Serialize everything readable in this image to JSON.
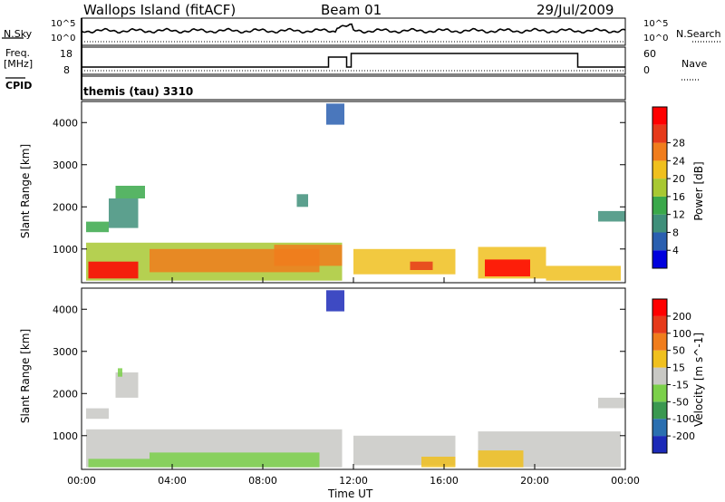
{
  "header": {
    "station": "Wallops Island (fitACF)",
    "beam": "Beam 01",
    "date": "29/Jul/2009"
  },
  "strip": {
    "nsky_label": "N.Sky",
    "nsearch_label": "N.Search",
    "freq_label": "Freq.",
    "freq_unit": "[MHz]",
    "cpid_label": "CPID",
    "nave_label": "Nave",
    "mode_text": "themis (tau) 3310",
    "noise_ticks": [
      "10^5",
      "10^0"
    ],
    "freq_ticks": [
      "18",
      "8"
    ],
    "nave_ticks": [
      "60",
      "0"
    ],
    "colors": {
      "line": "#000000"
    }
  },
  "time_axis": {
    "title": "Time UT",
    "ticks": [
      "00:00",
      "04:00",
      "08:00",
      "12:00",
      "16:00",
      "20:00",
      "00:00"
    ]
  },
  "chart_data": [
    {
      "type": "heatmap",
      "name": "power",
      "ylabel": "Slant Range [km]",
      "yticks": [
        "1000",
        "2000",
        "3000",
        "4000"
      ],
      "ylim": [
        200,
        4500
      ],
      "xlim_hours": [
        0,
        24
      ],
      "colorbar": {
        "label": "Power [dB]",
        "ticks": [
          "4",
          "8",
          "12",
          "16",
          "20",
          "24",
          "28"
        ],
        "colors": [
          "#0000dd",
          "#2a5fb0",
          "#3f8f7a",
          "#3aa84a",
          "#a8c832",
          "#f0c01e",
          "#f07d1c",
          "#e63a1a",
          "#ff0000"
        ]
      },
      "regions": [
        {
          "t": [
            0.2,
            11.5
          ],
          "r": [
            250,
            1150
          ],
          "level": 4
        },
        {
          "t": [
            0.3,
            2.5
          ],
          "r": [
            300,
            700
          ],
          "level": 8
        },
        {
          "t": [
            3.0,
            10.5
          ],
          "r": [
            450,
            1000
          ],
          "level": 6
        },
        {
          "t": [
            8.5,
            11.5
          ],
          "r": [
            600,
            1100
          ],
          "level": 6
        },
        {
          "t": [
            12.0,
            16.5
          ],
          "r": [
            400,
            1000
          ],
          "level": 5
        },
        {
          "t": [
            14.5,
            15.5
          ],
          "r": [
            500,
            700
          ],
          "level": 7
        },
        {
          "t": [
            17.5,
            20.5
          ],
          "r": [
            300,
            1050
          ],
          "level": 5
        },
        {
          "t": [
            17.8,
            19.8
          ],
          "r": [
            350,
            750
          ],
          "level": 8
        },
        {
          "t": [
            20.5,
            23.8
          ],
          "r": [
            250,
            600
          ],
          "level": 5
        },
        {
          "t": [
            0.2,
            1.2
          ],
          "r": [
            1400,
            1650
          ],
          "level": 3
        },
        {
          "t": [
            1.2,
            2.5
          ],
          "r": [
            1500,
            2200
          ],
          "level": 2
        },
        {
          "t": [
            1.5,
            2.8
          ],
          "r": [
            2200,
            2500
          ],
          "level": 3
        },
        {
          "t": [
            10.8,
            11.6
          ],
          "r": [
            3950,
            4450
          ],
          "level": 1
        },
        {
          "t": [
            22.8,
            24.0
          ],
          "r": [
            1650,
            1900
          ],
          "level": 2
        },
        {
          "t": [
            9.5,
            10.0
          ],
          "r": [
            2000,
            2300
          ],
          "level": 2
        }
      ]
    },
    {
      "type": "heatmap",
      "name": "velocity",
      "ylabel": "Slant Range [km]",
      "yticks": [
        "1000",
        "2000",
        "3000",
        "4000"
      ],
      "ylim": [
        200,
        4500
      ],
      "xlim_hours": [
        0,
        24
      ],
      "colorbar": {
        "label": "Velocity [m s^-1]",
        "ticks": [
          "200",
          "100",
          "50",
          "15",
          "-15",
          "-50",
          "-100",
          "-200"
        ],
        "colors": [
          "#1c2ab8",
          "#2a6fb0",
          "#3a9850",
          "#7bd04a",
          "#c8c8c4",
          "#f0c01e",
          "#f07d1c",
          "#e63a1a",
          "#ff0000"
        ]
      },
      "regions": [
        {
          "t": [
            0.2,
            11.5
          ],
          "r": [
            250,
            1150
          ],
          "level": 4
        },
        {
          "t": [
            0.3,
            3.0
          ],
          "r": [
            250,
            450
          ],
          "level": 3
        },
        {
          "t": [
            3.0,
            10.5
          ],
          "r": [
            250,
            600
          ],
          "level": 3
        },
        {
          "t": [
            12.0,
            16.5
          ],
          "r": [
            300,
            1000
          ],
          "level": 4
        },
        {
          "t": [
            15.0,
            16.5
          ],
          "r": [
            250,
            500
          ],
          "level": 5
        },
        {
          "t": [
            17.5,
            23.8
          ],
          "r": [
            250,
            1100
          ],
          "level": 4
        },
        {
          "t": [
            17.5,
            19.5
          ],
          "r": [
            250,
            650
          ],
          "level": 5
        },
        {
          "t": [
            0.2,
            1.2
          ],
          "r": [
            1400,
            1650
          ],
          "level": 4
        },
        {
          "t": [
            1.5,
            2.5
          ],
          "r": [
            1900,
            2500
          ],
          "level": 4
        },
        {
          "t": [
            1.6,
            1.8
          ],
          "r": [
            2400,
            2600
          ],
          "level": 3
        },
        {
          "t": [
            10.8,
            11.6
          ],
          "r": [
            3950,
            4450
          ],
          "level": 0
        },
        {
          "t": [
            22.8,
            24.0
          ],
          "r": [
            1650,
            1900
          ],
          "level": 4
        }
      ]
    }
  ]
}
